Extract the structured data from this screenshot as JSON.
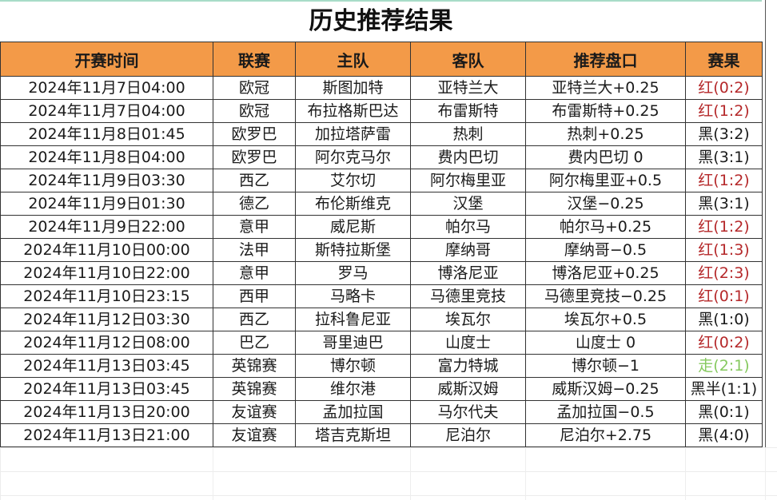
{
  "title": "历史推荐结果",
  "colors": {
    "header_bg": "#f39a48",
    "red": "#b5282a",
    "green": "#86c95f",
    "black": "#1a1a1a"
  },
  "headers": [
    "开赛时间",
    "联赛",
    "主队",
    "客队",
    "推荐盘口",
    "赛果"
  ],
  "rows": [
    {
      "time": "2024年11月7日04:00",
      "league": "欧冠",
      "home": "斯图加特",
      "away": "亚特兰大",
      "pick": "亚特兰大+0.25",
      "result": "红(0:2)",
      "status": "red"
    },
    {
      "time": "2024年11月7日04:00",
      "league": "欧冠",
      "home": "布拉格斯巴达",
      "away": "布雷斯特",
      "pick": "布雷斯特+0.25",
      "result": "红(1:2)",
      "status": "red"
    },
    {
      "time": "2024年11月8日01:45",
      "league": "欧罗巴",
      "home": "加拉塔萨雷",
      "away": "热刺",
      "pick": "热刺+0.25",
      "result": "黑(3:2)",
      "status": "black"
    },
    {
      "time": "2024年11月8日04:00",
      "league": "欧罗巴",
      "home": "阿尔克马尔",
      "away": "费内巴切",
      "pick": "费内巴切 0",
      "result": "黑(3:1)",
      "status": "black"
    },
    {
      "time": "2024年11月9日03:30",
      "league": "西乙",
      "home": "艾尔切",
      "away": "阿尔梅里亚",
      "pick": "阿尔梅里亚+0.5",
      "result": "红(1:2)",
      "status": "red"
    },
    {
      "time": "2024年11月9日01:30",
      "league": "德乙",
      "home": "布伦斯维克",
      "away": "汉堡",
      "pick": "汉堡−0.25",
      "result": "黑(3:1)",
      "status": "black"
    },
    {
      "time": "2024年11月9日22:00",
      "league": "意甲",
      "home": "威尼斯",
      "away": "帕尔马",
      "pick": "帕尔马+0.25",
      "result": "红(1:2)",
      "status": "red"
    },
    {
      "time": "2024年11月10日00:00",
      "league": "法甲",
      "home": "斯特拉斯堡",
      "away": "摩纳哥",
      "pick": "摩纳哥−0.5",
      "result": "红(1:3)",
      "status": "red"
    },
    {
      "time": "2024年11月10日22:00",
      "league": "意甲",
      "home": "罗马",
      "away": "博洛尼亚",
      "pick": "博洛尼亚+0.25",
      "result": "红(2:3)",
      "status": "red"
    },
    {
      "time": "2024年11月10日23:15",
      "league": "西甲",
      "home": "马略卡",
      "away": "马德里竞技",
      "pick": "马德里竞技−0.25",
      "result": "红(0:1)",
      "status": "red"
    },
    {
      "time": "2024年11月12日03:30",
      "league": "西乙",
      "home": "拉科鲁尼亚",
      "away": "埃瓦尔",
      "pick": "埃瓦尔+0.5",
      "result": "黑(1:0)",
      "status": "black"
    },
    {
      "time": "2024年11月12日08:00",
      "league": "巴乙",
      "home": "哥里迪巴",
      "away": "山度士",
      "pick": "山度士 0",
      "result": "红(0:2)",
      "status": "red"
    },
    {
      "time": "2024年11月13日03:45",
      "league": "英锦赛",
      "home": "博尔顿",
      "away": "富力特城",
      "pick": "博尔顿−1",
      "result": "走(2:1)",
      "status": "green"
    },
    {
      "time": "2024年11月13日03:45",
      "league": "英锦赛",
      "home": "维尔港",
      "away": "威斯汉姆",
      "pick": "威斯汉姆−0.25",
      "result": "黑半(1:1)",
      "status": "black"
    },
    {
      "time": "2024年11月13日20:00",
      "league": "友谊赛",
      "home": "孟加拉国",
      "away": "马尔代夫",
      "pick": "孟加拉国−0.5",
      "result": "黑(0:1)",
      "status": "black"
    },
    {
      "time": "2024年11月13日21:00",
      "league": "友谊赛",
      "home": "塔吉克斯坦",
      "away": "尼泊尔",
      "pick": "尼泊尔+2.75",
      "result": "黑(4:0)",
      "status": "black"
    }
  ]
}
